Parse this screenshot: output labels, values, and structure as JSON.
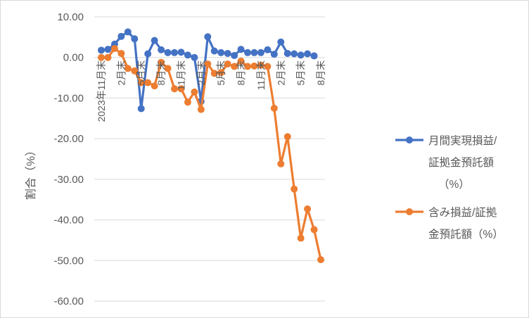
{
  "chart_data": {
    "type": "line",
    "ylabel": "割合（%）",
    "ylim": [
      -60,
      10
    ],
    "yticks": [
      "10.00",
      "0.00",
      "-10.00",
      "-20.00",
      "-30.00",
      "-40.00",
      "-50.00",
      "-60.00"
    ],
    "grid": true,
    "legend_position": "right",
    "x_label_positions": [
      0,
      3,
      6,
      9,
      12,
      15,
      18,
      21,
      24,
      27,
      30,
      33
    ],
    "x_labels": [
      "2023年11月末",
      "2月末",
      "5月末",
      "8月末",
      "11月末",
      "2月末",
      "5月末",
      "8月末",
      "11月末",
      "2月末",
      "5月末",
      "8月末"
    ],
    "series": [
      {
        "name": "月間実現損益/証拠金預託額（%）",
        "legend_lines": [
          "月間実現損益/",
          "証拠金預託額",
          "（%）"
        ],
        "color": "#4472c4",
        "values": [
          1.8,
          2.0,
          3.3,
          5.2,
          6.3,
          4.6,
          -12.6,
          0.9,
          4.2,
          1.9,
          1.2,
          1.2,
          1.3,
          0.6,
          0.0,
          -10.8,
          5.1,
          1.6,
          1.2,
          1.0,
          0.5,
          2.0,
          1.2,
          1.2,
          1.2,
          1.9,
          0.8,
          3.8,
          1.0,
          0.9,
          0.6,
          0.9,
          0.4
        ]
      },
      {
        "name": "含み損益/証拠金預託額（%）",
        "legend_lines": [
          "含み損益/証拠",
          "金預託額（%）"
        ],
        "color": "#ed7d31",
        "values": [
          0.0,
          0.0,
          2.2,
          1.0,
          -2.7,
          -3.3,
          -6.2,
          -6.2,
          -7.0,
          -1.2,
          -2.7,
          -7.7,
          -7.7,
          -11.0,
          -8.5,
          -12.8,
          -1.6,
          -3.9,
          -3.7,
          -1.6,
          -2.2,
          -0.9,
          -2.2,
          -2.1,
          -1.9,
          -2.2,
          -12.5,
          -26.2,
          -19.5,
          -32.4,
          -44.5,
          -37.3,
          -42.4,
          -49.8
        ]
      }
    ]
  }
}
